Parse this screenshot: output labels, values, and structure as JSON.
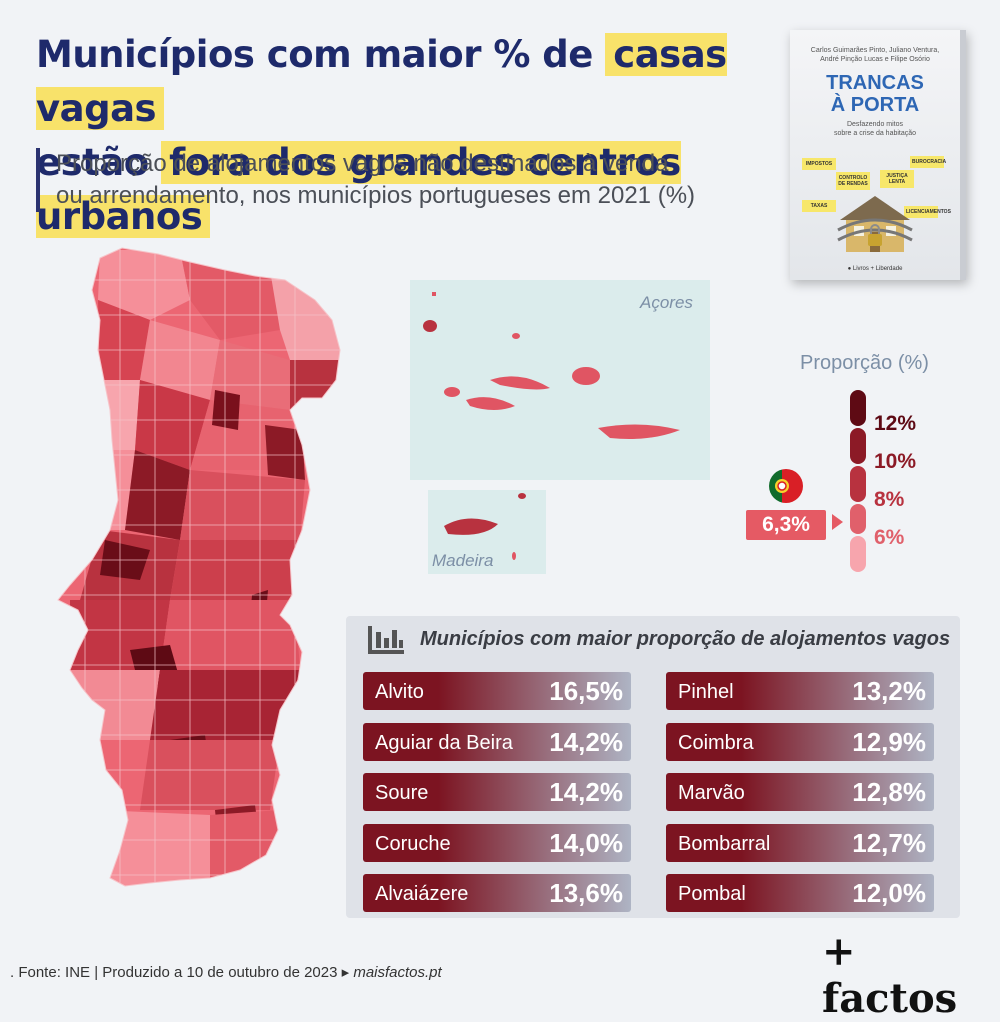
{
  "title": {
    "line1_start": "Municípios com maior % de",
    "line1_highlight": "casas vagas",
    "line2_start": "estão",
    "line2_highlight": "fora dos grandes centros urbanos"
  },
  "subtitle": {
    "line1": "Proporção de alojamentos vagos não destinados à venda",
    "line2": "ou arrendamento, nos municípios portugueses em 2021 (%)"
  },
  "book": {
    "authors_line1": "Carlos Guimarães Pinto, Juliano Ventura,",
    "authors_line2": "André Pinção Lucas e Filipe Osório",
    "title_line1": "TRANCAS",
    "title_line2": "À PORTA",
    "subtitle_line1": "Desfazendo mitos",
    "subtitle_line2": "sobre a crise da habitação",
    "notes": [
      "IMPOSTOS",
      "BUROCRACIA",
      "CONTROLO DE RENDAS",
      "JUSTIÇA LENTA",
      "TAXAS",
      "LICENCIAMENTOS"
    ],
    "publishers": "● Livros + Liberdade"
  },
  "map": {
    "inset_azores_label": "Açores",
    "inset_madeira_label": "Madeira"
  },
  "legend": {
    "title": "Proporção (%)",
    "labels": [
      "12%",
      "10%",
      "8%",
      "6%"
    ],
    "colors": [
      "#5e0a14",
      "#8c1a26",
      "#b8323f",
      "#e0606b",
      "#f7a5ad"
    ]
  },
  "national": {
    "value": "6,3%",
    "flag_icon": "portugal-flag-icon"
  },
  "chart_data": {
    "type": "table",
    "title": "Municípios com maior proporção de alojamentos vagos",
    "unit": "%",
    "rows_left": [
      {
        "name": "Alvito",
        "value": "16,5%"
      },
      {
        "name": "Aguiar da Beira",
        "value": "14,2%"
      },
      {
        "name": "Soure",
        "value": "14,2%"
      },
      {
        "name": "Coruche",
        "value": "14,0%"
      },
      {
        "name": "Alvaiázere",
        "value": "13,6%"
      }
    ],
    "rows_right": [
      {
        "name": "Pinhel",
        "value": "13,2%"
      },
      {
        "name": "Coimbra",
        "value": "12,9%"
      },
      {
        "name": "Marvão",
        "value": "12,8%"
      },
      {
        "name": "Bombarral",
        "value": "12,7%"
      },
      {
        "name": "Pombal",
        "value": "12,0%"
      }
    ],
    "values": [
      16.5,
      14.2,
      14.2,
      14.0,
      13.6,
      13.2,
      12.9,
      12.8,
      12.7,
      12.0
    ]
  },
  "footer": {
    "source": ". Fonte: INE | Produzido a 10 de outubro de 2023 ▸",
    "site": "maisfactos.pt"
  },
  "logo": "+ factos"
}
